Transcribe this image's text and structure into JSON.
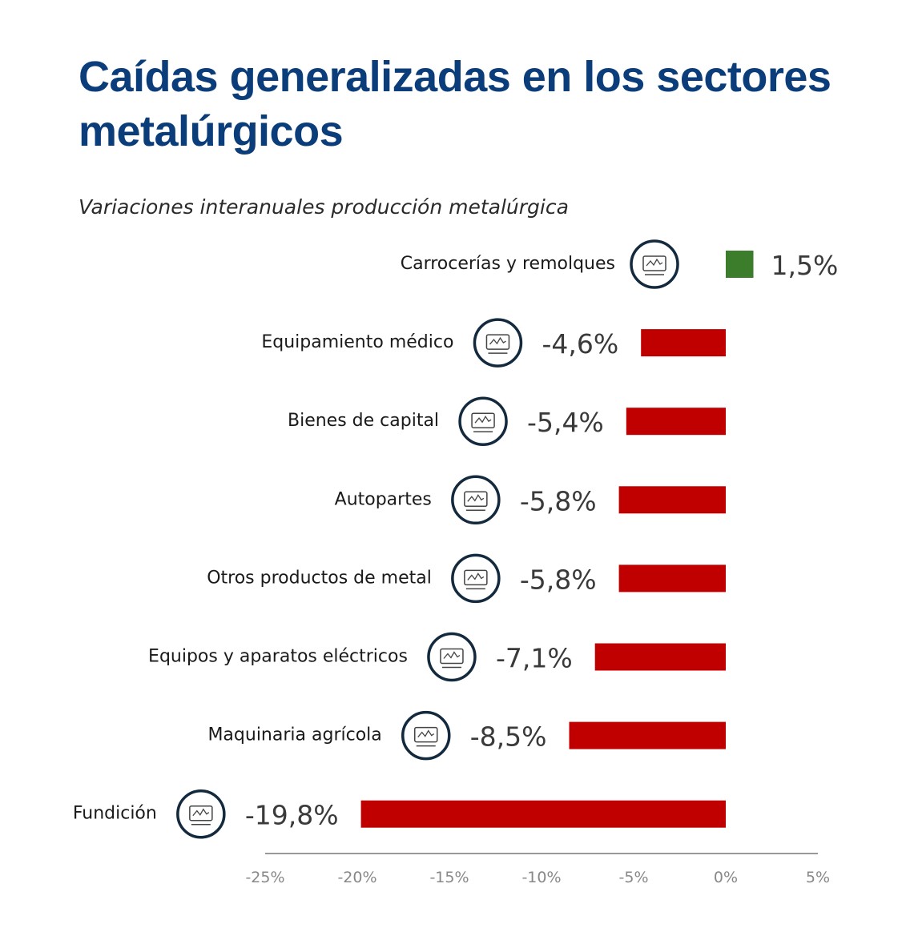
{
  "chart_data": {
    "type": "bar",
    "orientation": "horizontal",
    "title": "Caídas generalizadas en los sectores metalúrgicos",
    "subtitle": "Variaciones interanuales producción metalúrgica",
    "categories": [
      "Carrocerías y remolques",
      "Equipamiento médico",
      "Bienes de capital",
      "Autopartes",
      "Otros productos de metal",
      "Equipos y aparatos eléctricos",
      "Maquinaria agrícola",
      "Fundición"
    ],
    "values": [
      1.5,
      -4.6,
      -5.4,
      -5.8,
      -5.8,
      -7.1,
      -8.5,
      -19.8
    ],
    "value_labels": [
      "1,5%",
      "-4,6%",
      "-5,4%",
      "-5,8%",
      "-5,8%",
      "-7,1%",
      "-8,5%",
      "-19,8%"
    ],
    "icons": [
      "trailer-icon",
      "medical-monitor-icon",
      "robot-arm-icon",
      "auto-parts-icon",
      "gears-icon",
      "electrical-icon",
      "harvester-icon",
      "foundry-ladle-icon"
    ],
    "xlim": [
      -25,
      5
    ],
    "xticks": [
      -25,
      -20,
      -15,
      -10,
      -5,
      0,
      5
    ],
    "xtick_labels": [
      "-25%",
      "-20%",
      "-15%",
      "-10%",
      "-5%",
      "0%",
      "5%"
    ],
    "grid": false,
    "colors": {
      "positive": "#3b7d2b",
      "negative": "#c00000",
      "title": "#0b3d7a",
      "icon_ring": "#13293d"
    }
  }
}
